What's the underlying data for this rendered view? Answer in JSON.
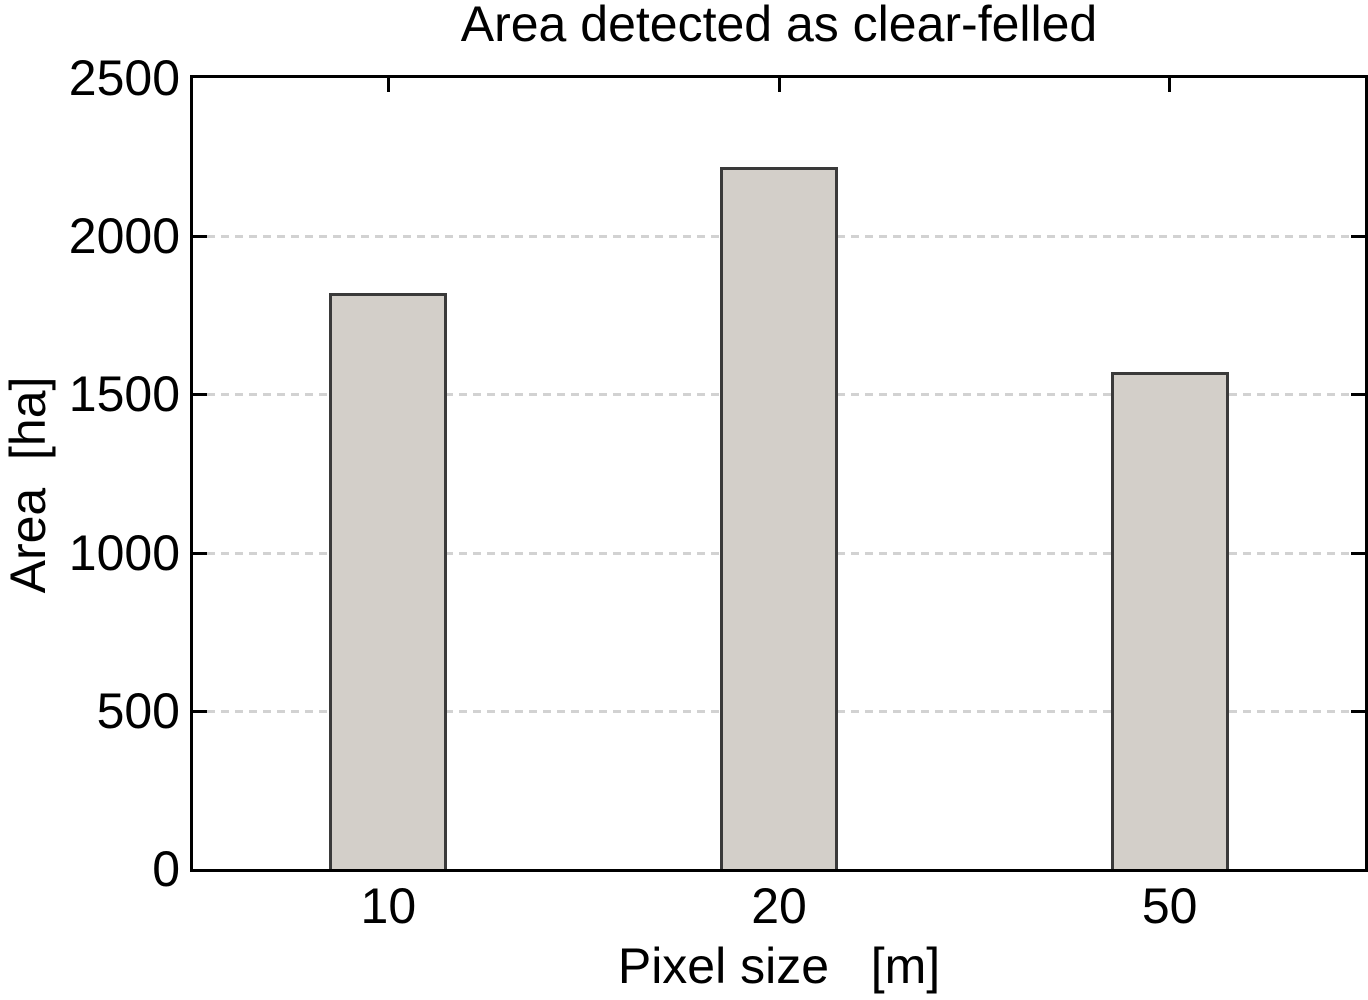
{
  "chart_data": {
    "type": "bar",
    "title": "Area detected as clear-felled",
    "xlabel": "Pixel size   [m]",
    "ylabel": "Area  [ha]",
    "categories": [
      "10",
      "20",
      "50"
    ],
    "values": [
      1820,
      2220,
      1570
    ],
    "ylim": [
      0,
      2500
    ],
    "yticks": [
      0,
      500,
      1000,
      1500,
      2000,
      2500
    ],
    "grid": "horizontal dashed gridlines at y ticks",
    "legend": "none",
    "bar_width_fraction": 0.302,
    "colors": {
      "bar_fill": "#d3cfc9",
      "bar_edge": "#3a3a3a",
      "gridline": "#d2d2d2",
      "axis": "#000000",
      "text": "#000000",
      "background": "#ffffff"
    }
  }
}
